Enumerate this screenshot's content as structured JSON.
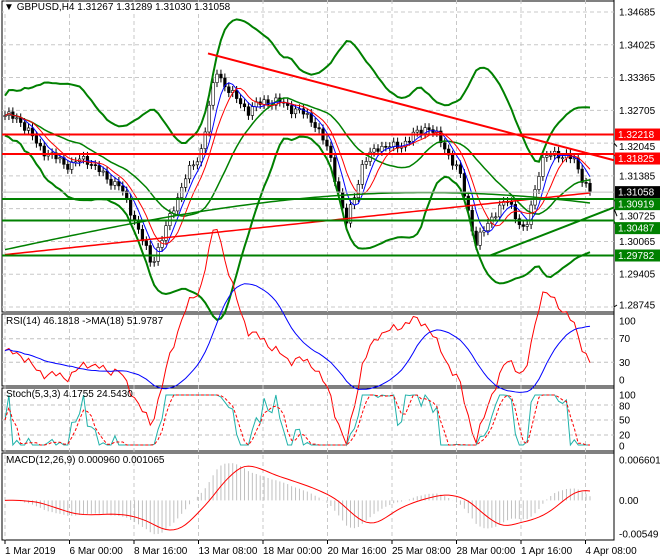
{
  "chart_data": {
    "type": "line",
    "title": "GBPUSD,H4",
    "ohlc_header": [
      "1.31267",
      "1.31289",
      "1.31030",
      "1.31058"
    ],
    "price_axis_ticks": [
      "1.34685",
      "1.34025",
      "1.33365",
      "1.32705",
      "1.32045",
      "1.31385",
      "1.30725",
      "1.30065",
      "1.29405",
      "1.28745"
    ],
    "ylim": [
      1.28745,
      1.34685
    ],
    "close_path": [
      1.326,
      1.325,
      1.32,
      1.3175,
      1.316,
      1.3175,
      1.314,
      1.312,
      1.305,
      1.296,
      1.304,
      1.313,
      1.318,
      1.335,
      1.33,
      1.327,
      1.329,
      1.3285,
      1.327,
      1.325,
      1.318,
      1.304,
      1.316,
      1.32,
      1.3195,
      1.3215,
      1.324,
      1.32,
      1.314,
      1.3,
      1.306,
      1.309,
      1.302,
      1.317,
      1.3185,
      1.317,
      1.3106
    ],
    "levels": [
      {
        "label": "1.32218",
        "value": 1.32218,
        "color": "#ff0000"
      },
      {
        "label": "1.31825",
        "value": 1.31825,
        "color": "#ff0000"
      },
      {
        "label": "1.30919",
        "value": 1.30919,
        "color": "#008000"
      },
      {
        "label": "1.30487",
        "value": 1.30487,
        "color": "#008000"
      },
      {
        "label": "1.29782",
        "value": 1.29782,
        "color": "#008000"
      }
    ],
    "current_price": {
      "label": "1.31058",
      "value": 1.31058
    },
    "x_ticks": [
      "1 Mar 2019",
      "6 Mar 00:00",
      "8 Mar 16:00",
      "13 Mar 08:00",
      "18 Mar 00:00",
      "20 Mar 16:00",
      "25 Mar 08:00",
      "28 Mar 00:00",
      "1 Apr 16:00",
      "4 Apr 08:00"
    ],
    "rsi": {
      "label": "RSI(14) 46.1818  ->MA(18) 51.9787",
      "ticks": [
        "100",
        "70",
        "30",
        "0"
      ],
      "ylim": [
        0,
        100
      ],
      "levels": [
        70,
        30
      ]
    },
    "stoch": {
      "label": "Stoch(5,3,3) 4.1755 24.5430",
      "ticks": [
        "100",
        "80",
        "50",
        "20",
        "0"
      ],
      "ylim": [
        0,
        100
      ],
      "levels": [
        80,
        50,
        20
      ]
    },
    "macd": {
      "label": "MACD(12,26,9) 0.000960 0.001065",
      "ticks": [
        "0.006601",
        "0.00",
        "-0.00549"
      ],
      "ylim": [
        -0.00549,
        0.006601
      ]
    },
    "colors": {
      "bull": "#000000",
      "bear": "#000000",
      "bands": "#008000",
      "trend_res": "#ff0000",
      "trend_sup": "#008000",
      "rsi": "#ff0000",
      "rsi_ma": "#0000ff",
      "stoch_main": "#20b2aa",
      "stoch_signal": "#ff0000",
      "macd_hist": "#c0c0c0",
      "macd_signal": "#ff0000"
    }
  }
}
